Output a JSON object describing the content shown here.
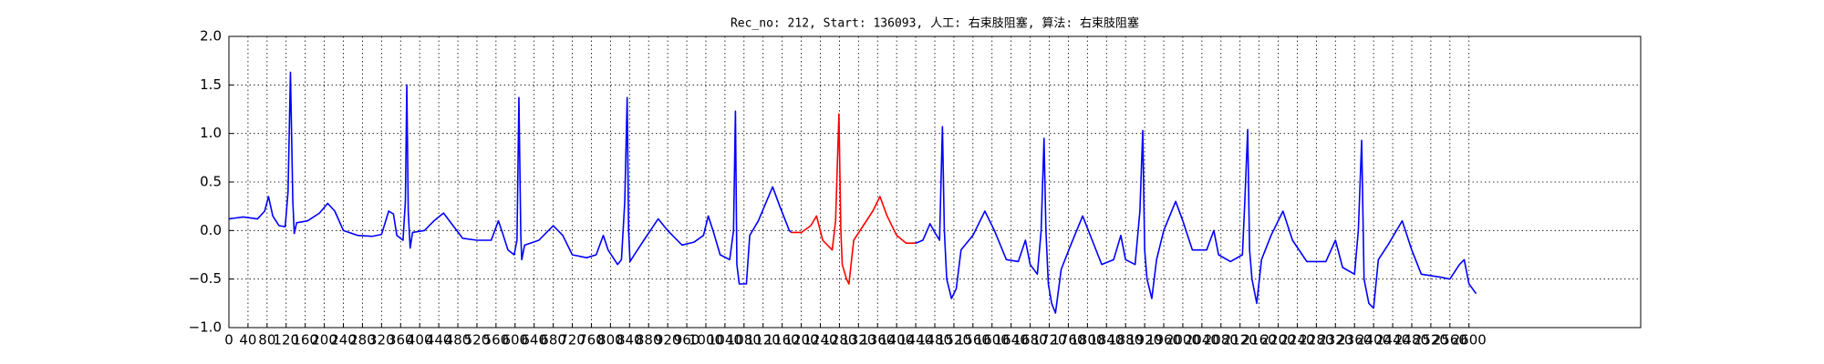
{
  "chart_data": {
    "type": "line",
    "title": "Rec_no: 212, Start: 136093, 人工: 右束肢阻塞, 算法: 右束肢阻塞",
    "xlim": [
      0,
      2960
    ],
    "xticks": [
      0,
      40,
      80,
      120,
      160,
      200,
      240,
      280,
      320,
      360,
      400,
      440,
      480,
      520,
      560,
      600,
      640,
      680,
      720,
      760,
      800,
      840,
      880,
      920,
      960,
      1000,
      1040,
      1080,
      1120,
      1160,
      1200,
      1240,
      1280,
      1320,
      1360,
      1400,
      1440,
      1480,
      1520,
      1560,
      1600,
      1640,
      1680,
      1720,
      1760,
      1800,
      1840,
      1880,
      1920,
      1960,
      2000,
      2040,
      2080,
      2120,
      2160,
      2200,
      2240,
      2280,
      2320,
      2360,
      2400,
      2440,
      2480,
      2520,
      2560,
      2600
    ],
    "ylim": [
      -1.0,
      2.0
    ],
    "yticks": [
      {
        "value": -1.0,
        "label": "−1.0"
      },
      {
        "value": -0.5,
        "label": "−0.5"
      },
      {
        "value": 0.0,
        "label": "0.0"
      },
      {
        "value": 0.5,
        "label": "0.5"
      },
      {
        "value": 1.0,
        "label": "1.0"
      },
      {
        "value": 1.5,
        "label": "1.5"
      },
      {
        "value": 2.0,
        "label": "2.0"
      }
    ],
    "grid": true,
    "series": [
      {
        "color": "#0000ff",
        "x": [
          0,
          30,
          60,
          75,
          83,
          92,
          105,
          118,
          124,
          129,
          134,
          137,
          142,
          165,
          190,
          207,
          222,
          240,
          270,
          300,
          320,
          335,
          345,
          352,
          365,
          370,
          373,
          376,
          380,
          385,
          410,
          430,
          450,
          470,
          490,
          520,
          550,
          565,
          572,
          585,
          598,
          604,
          608,
          612,
          614,
          620,
          650,
          680,
          700,
          720,
          750,
          770,
          785,
          795,
          815,
          823,
          830,
          835,
          838,
          841,
          850,
          870,
          900,
          920,
          950,
          975,
          995,
          1005,
          1015,
          1030,
          1050,
          1058,
          1062,
          1065,
          1070,
          1085,
          1092,
          1110,
          1140,
          1155,
          1175,
          1179,
          null,
          1440,
          1455,
          1470,
          1480,
          1490,
          1493,
          1496,
          1500,
          1505,
          1515,
          1525,
          1535,
          1560,
          1585,
          1605,
          1630,
          1655,
          1670,
          1680,
          1695,
          1703,
          1709,
          1713,
          1718,
          1725,
          1733,
          1745,
          1765,
          1790,
          1810,
          1830,
          1855,
          1870,
          1880,
          1900,
          1910,
          1916,
          1920,
          1925,
          1935,
          1945,
          1960,
          1985,
          2000,
          2020,
          2050,
          2065,
          2075,
          2100,
          2125,
          2130,
          2136,
          2140,
          2145,
          2155,
          2165,
          2185,
          2210,
          2230,
          2260,
          2300,
          2320,
          2335,
          2360,
          2368,
          2375,
          2380,
          2390,
          2400,
          2410,
          2430,
          2460,
          2480,
          2500,
          2540,
          2560,
          2580,
          2590,
          2600,
          2615
        ],
        "values": [
          0.12,
          0.14,
          0.12,
          0.2,
          0.35,
          0.15,
          0.05,
          0.04,
          0.4,
          1.63,
          0.3,
          -0.03,
          0.08,
          0.1,
          0.18,
          0.28,
          0.2,
          0.0,
          -0.05,
          -0.06,
          -0.04,
          0.2,
          0.17,
          -0.05,
          -0.1,
          0.3,
          1.5,
          0.2,
          -0.18,
          -0.02,
          0.0,
          0.1,
          0.18,
          0.05,
          -0.08,
          -0.1,
          -0.1,
          0.1,
          0.0,
          -0.2,
          -0.25,
          -0.1,
          1.37,
          -0.05,
          -0.3,
          -0.15,
          -0.1,
          0.05,
          -0.05,
          -0.25,
          -0.28,
          -0.25,
          -0.05,
          -0.2,
          -0.35,
          -0.3,
          0.3,
          1.37,
          0.0,
          -0.32,
          -0.25,
          -0.1,
          0.12,
          0.0,
          -0.15,
          -0.12,
          -0.05,
          0.15,
          0.0,
          -0.25,
          -0.3,
          0.0,
          1.23,
          -0.35,
          -0.55,
          -0.55,
          -0.05,
          0.1,
          0.45,
          0.25,
          0.0,
          -0.02,
          null,
          -0.13,
          -0.1,
          0.07,
          -0.02,
          -0.1,
          0.5,
          1.07,
          0.0,
          -0.5,
          -0.7,
          -0.6,
          -0.2,
          -0.05,
          0.2,
          0.0,
          -0.3,
          -0.32,
          -0.1,
          -0.35,
          -0.45,
          0.0,
          0.95,
          0.0,
          -0.55,
          -0.75,
          -0.85,
          -0.4,
          -0.15,
          0.15,
          -0.1,
          -0.35,
          -0.3,
          -0.05,
          -0.3,
          -0.35,
          0.2,
          1.03,
          -0.2,
          -0.5,
          -0.7,
          -0.3,
          0.0,
          0.3,
          0.1,
          -0.2,
          -0.2,
          0.0,
          -0.25,
          -0.32,
          -0.25,
          0.3,
          1.04,
          -0.2,
          -0.5,
          -0.75,
          -0.3,
          -0.05,
          0.2,
          -0.1,
          -0.32,
          -0.32,
          -0.1,
          -0.38,
          -0.45,
          0.0,
          0.93,
          -0.5,
          -0.75,
          -0.8,
          -0.3,
          -0.15,
          0.1,
          -0.2,
          -0.45,
          -0.48,
          -0.5,
          -0.35,
          -0.3,
          -0.55,
          -0.65
        ]
      },
      {
        "color": "#ff0000",
        "x": [
          1179,
          1200,
          1220,
          1232,
          1245,
          1265,
          1272,
          1279,
          1283,
          1286,
          1295,
          1300,
          1310,
          1330,
          1350,
          1365,
          1380,
          1400,
          1420,
          1440
        ],
        "values": [
          -0.02,
          -0.02,
          0.05,
          0.15,
          -0.1,
          -0.2,
          0.1,
          1.2,
          0.0,
          -0.35,
          -0.5,
          -0.55,
          -0.1,
          0.05,
          0.2,
          0.35,
          0.15,
          -0.05,
          -0.13,
          -0.13
        ]
      }
    ]
  }
}
